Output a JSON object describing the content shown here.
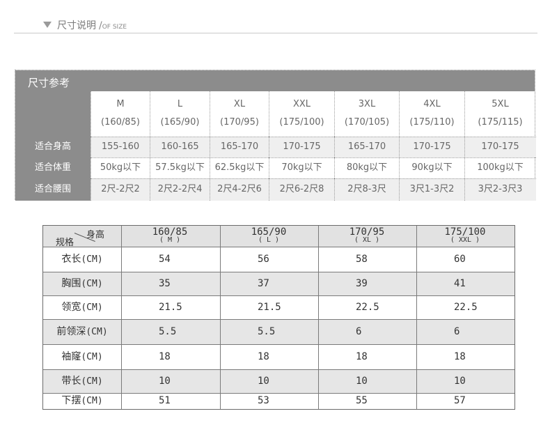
{
  "header": {
    "title": "尺寸说明",
    "slash": "/",
    "subtitle": "OF SIZE"
  },
  "table1": {
    "banner": "尺寸参考",
    "sizes": [
      {
        "name": "M",
        "range": "(160/85)"
      },
      {
        "name": "L",
        "range": "(165/90)"
      },
      {
        "name": "XL",
        "range": "(170/95)"
      },
      {
        "name": "XXL",
        "range": "(175/100)"
      },
      {
        "name": "3XL",
        "range": "(170/105)"
      },
      {
        "name": "4XL",
        "range": "(175/110)"
      },
      {
        "name": "5XL",
        "range": "(175/115)"
      }
    ],
    "rows": [
      {
        "label": "适合身高",
        "values": [
          "155-160",
          "160-165",
          "165-170",
          "170-175",
          "165-170",
          "170-175",
          "170-175"
        ]
      },
      {
        "label": "适合体重",
        "values": [
          "50kg以下",
          "57.5kg以下",
          "62.5kg以下",
          "70kg以下",
          "80kg以下",
          "90kg以下",
          "100kg以下"
        ]
      },
      {
        "label": "适合腰围",
        "values": [
          "2尺-2尺2",
          "2尺2-2尺4",
          "2尺4-2尺6",
          "2尺6-2尺8",
          "2尺8-3尺",
          "3尺1-3尺2",
          "3尺2-3尺3"
        ]
      }
    ]
  },
  "table2": {
    "corner_top": "身高",
    "corner_bottom": "规格",
    "columns": [
      {
        "main": "160/85",
        "sub": "( M )"
      },
      {
        "main": "165/90",
        "sub": "( L )"
      },
      {
        "main": "170/95",
        "sub": "( XL )"
      },
      {
        "main": "175/100",
        "sub": "( XXL )"
      }
    ],
    "unit": "(CM)",
    "rows": [
      {
        "label": "衣长",
        "values": [
          "54",
          "56",
          "58",
          "60"
        ]
      },
      {
        "label": "胸围",
        "values": [
          "35",
          "37",
          "39",
          "41"
        ]
      },
      {
        "label": "领宽",
        "values": [
          "21.5",
          "21.5",
          "22.5",
          "22.5"
        ]
      },
      {
        "label": "前领深",
        "values": [
          "5.5",
          "5.5",
          "6",
          "6"
        ]
      },
      {
        "label": "袖窿",
        "values": [
          "18",
          "18",
          "18",
          "18"
        ]
      },
      {
        "label": "带长",
        "values": [
          "10",
          "10",
          "10",
          "10"
        ]
      },
      {
        "label": "下摆",
        "values": [
          "51",
          "53",
          "55",
          "57"
        ]
      }
    ]
  }
}
